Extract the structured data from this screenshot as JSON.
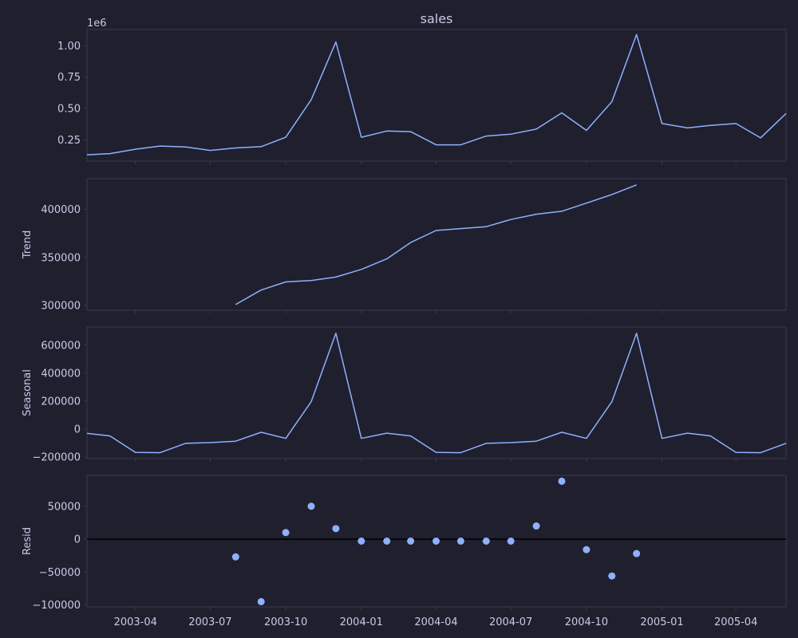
{
  "colors": {
    "background": "#1f1f2e",
    "axes_frame": "#3a3b52",
    "tick_marks": "#3a3b52",
    "text": "#c8cbe6",
    "series": "#8fb0ff",
    "zero_line": "#000000"
  },
  "chart_data": [
    {
      "type": "line",
      "title": "sales",
      "xlabel": "",
      "ylabel": "",
      "exponent_label": "1e6",
      "x_tick_labels": [
        "2003-04",
        "2003-07",
        "2003-10",
        "2004-01",
        "2004-04",
        "2004-07",
        "2004-10",
        "2005-01",
        "2005-04"
      ],
      "yticks": [
        0.25,
        0.5,
        0.75,
        1.0
      ],
      "ytick_labels": [
        "0.25",
        "0.50",
        "0.75",
        "1.00"
      ],
      "ylim": [
        0.08,
        1.13
      ],
      "scale": 1000000,
      "series": [
        {
          "x": [
            "2003-02",
            "2003-03",
            "2003-04",
            "2003-05",
            "2003-06",
            "2003-07",
            "2003-08",
            "2003-09",
            "2003-10",
            "2003-11",
            "2003-12",
            "2004-01",
            "2004-02",
            "2004-03",
            "2004-04",
            "2004-05",
            "2004-06",
            "2004-07",
            "2004-08",
            "2004-09",
            "2004-10",
            "2004-11",
            "2004-12",
            "2005-01",
            "2005-02",
            "2005-03",
            "2005-04",
            "2005-05",
            "2005-06"
          ],
          "values": [
            0.13,
            0.14,
            0.175,
            0.2,
            0.193,
            0.165,
            0.185,
            0.195,
            0.27,
            0.57,
            1.03,
            0.27,
            0.32,
            0.315,
            0.21,
            0.21,
            0.28,
            0.295,
            0.335,
            0.465,
            0.325,
            0.555,
            1.09,
            0.38,
            0.345,
            0.365,
            0.38,
            0.265,
            0.46
          ]
        }
      ]
    },
    {
      "type": "line",
      "title": "",
      "xlabel": "",
      "ylabel": "Trend",
      "yticks": [
        300000,
        350000,
        400000
      ],
      "ytick_labels": [
        "300000",
        "350000",
        "400000"
      ],
      "ylim": [
        295000,
        432000
      ],
      "series": [
        {
          "x": [
            "2003-08",
            "2003-09",
            "2003-10",
            "2003-11",
            "2003-12",
            "2004-01",
            "2004-02",
            "2004-03",
            "2004-04",
            "2004-05",
            "2004-06",
            "2004-07",
            "2004-08",
            "2004-09",
            "2004-10",
            "2004-11",
            "2004-12"
          ],
          "values": [
            301000,
            316000,
            324500,
            326000,
            329500,
            337500,
            348500,
            365500,
            378000,
            380000,
            382000,
            389500,
            395000,
            398000,
            406500,
            415500,
            425500
          ]
        }
      ]
    },
    {
      "type": "line",
      "title": "",
      "xlabel": "",
      "ylabel": "Seasonal",
      "yticks": [
        -200000,
        0,
        200000,
        400000,
        600000
      ],
      "ytick_labels": [
        "−200000",
        "0",
        "200000",
        "400000",
        "600000"
      ],
      "ylim": [
        -210000,
        730000
      ],
      "series": [
        {
          "x": [
            "2003-02",
            "2003-03",
            "2003-04",
            "2003-05",
            "2003-06",
            "2003-07",
            "2003-08",
            "2003-09",
            "2003-10",
            "2003-11",
            "2003-12",
            "2004-01",
            "2004-02",
            "2004-03",
            "2004-04",
            "2004-05",
            "2004-06",
            "2004-07",
            "2004-08",
            "2004-09",
            "2004-10",
            "2004-11",
            "2004-12",
            "2005-01",
            "2005-02",
            "2005-03",
            "2005-04",
            "2005-05",
            "2005-06"
          ],
          "values": [
            -30000,
            -48000,
            -166000,
            -168000,
            -101000,
            -96000,
            -86000,
            -22000,
            -66000,
            197000,
            685000,
            -66000,
            -28000,
            -48000,
            -166000,
            -168000,
            -101000,
            -96000,
            -86000,
            -22000,
            -66000,
            197000,
            685000,
            -66000,
            -28000,
            -48000,
            -166000,
            -168000,
            -101000
          ]
        }
      ]
    },
    {
      "type": "scatter",
      "title": "",
      "xlabel": "",
      "ylabel": "Resid",
      "yticks": [
        -100000,
        -50000,
        0,
        50000
      ],
      "ytick_labels": [
        "−100000",
        "−50000",
        "0",
        "50000"
      ],
      "ylim": [
        -103000,
        97000
      ],
      "zero_line": true,
      "series": [
        {
          "x": [
            "2003-08",
            "2003-09",
            "2003-10",
            "2003-11",
            "2003-12",
            "2004-01",
            "2004-02",
            "2004-03",
            "2004-04",
            "2004-05",
            "2004-06",
            "2004-07",
            "2004-08",
            "2004-09",
            "2004-10",
            "2004-11",
            "2004-12"
          ],
          "values": [
            -27000,
            -95000,
            10000,
            50000,
            16000,
            -3000,
            -3000,
            -3000,
            -3000,
            -3000,
            -3000,
            -3000,
            20000,
            88000,
            -16000,
            -56000,
            -22000
          ]
        }
      ]
    }
  ]
}
